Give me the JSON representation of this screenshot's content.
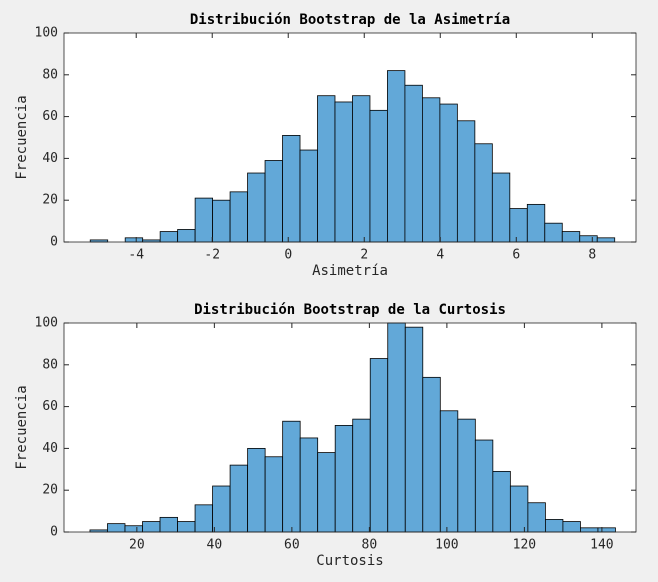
{
  "chart_data": [
    {
      "type": "histogram",
      "title": "Distribución Bootstrap de la Asimetría",
      "xlabel": "Asimetría",
      "ylabel": "Frecuencia",
      "bins": [
        -5.21,
        -4.75,
        -4.29,
        -3.83,
        -3.37,
        -2.91,
        -2.45,
        -1.99,
        -1.53,
        -1.07,
        -0.61,
        -0.15,
        0.31,
        0.77,
        1.23,
        1.69,
        2.15,
        2.61,
        3.07,
        3.53,
        3.99,
        4.45,
        4.91,
        5.37,
        5.83,
        6.29,
        6.75,
        7.21,
        7.67,
        8.13,
        8.59
      ],
      "values": [
        1,
        0,
        2,
        1,
        5,
        6,
        21,
        20,
        24,
        33,
        39,
        51,
        44,
        70,
        67,
        70,
        63,
        82,
        75,
        69,
        66,
        58,
        47,
        33,
        16,
        18,
        9,
        5,
        3,
        2
      ],
      "color": "#62a8d8",
      "xlim": [
        -5.9,
        9.15
      ],
      "ylim": [
        0,
        100
      ],
      "xticks": [
        -4,
        -2,
        0,
        2,
        4,
        6,
        8
      ],
      "yticks": [
        0,
        20,
        40,
        60,
        80,
        100
      ]
    },
    {
      "type": "histogram",
      "title": "Distribución Bootstrap de la Curtosis",
      "xlabel": "Curtosis",
      "ylabel": "Frecuencia",
      "bins": [
        7.9,
        12.42,
        16.94,
        21.46,
        25.98,
        30.5,
        35.02,
        39.54,
        44.06,
        48.58,
        53.1,
        57.62,
        62.14,
        66.66,
        71.18,
        75.7,
        80.22,
        84.74,
        89.26,
        93.78,
        98.3,
        102.82,
        107.34,
        111.86,
        116.38,
        120.9,
        125.42,
        129.94,
        134.46,
        138.98,
        143.5
      ],
      "values": [
        1,
        4,
        3,
        5,
        7,
        5,
        13,
        22,
        32,
        40,
        36,
        53,
        45,
        38,
        51,
        54,
        83,
        100,
        98,
        74,
        58,
        54,
        44,
        29,
        22,
        14,
        6,
        5,
        2,
        2
      ],
      "color": "#62a8d8",
      "xlim": [
        1.2,
        148.8
      ],
      "ylim": [
        0,
        100
      ],
      "xticks": [
        20,
        40,
        60,
        80,
        100,
        120,
        140
      ],
      "yticks": [
        0,
        20,
        40,
        60,
        80,
        100
      ]
    }
  ]
}
